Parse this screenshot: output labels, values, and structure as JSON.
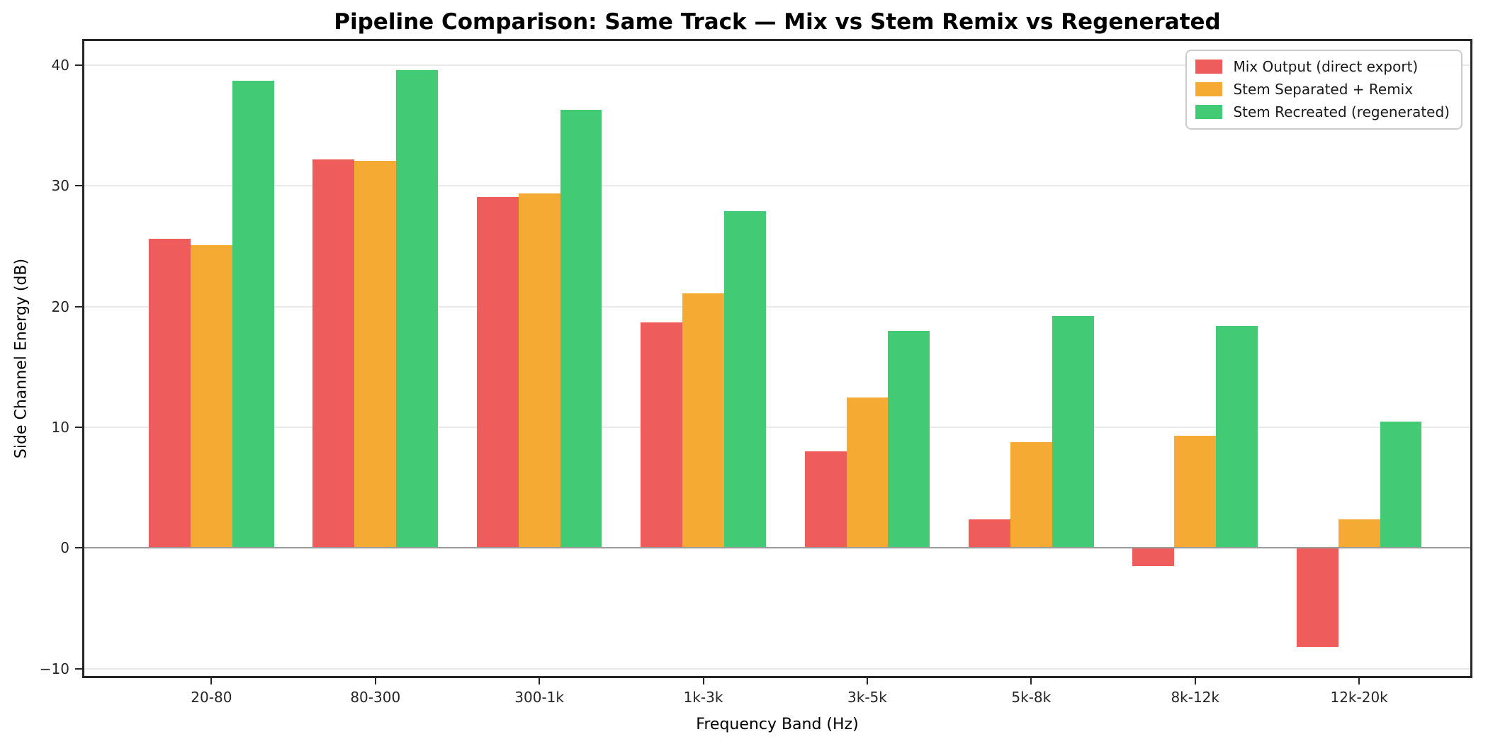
{
  "chart_data": {
    "type": "bar",
    "title": "Pipeline Comparison: Same Track — Mix vs Stem Remix vs Regenerated",
    "xlabel": "Frequency Band (Hz)",
    "ylabel": "Side Channel Energy (dB)",
    "categories": [
      "20-80",
      "80-300",
      "300-1k",
      "1k-3k",
      "3k-5k",
      "5k-8k",
      "8k-12k",
      "12k-20k"
    ],
    "series": [
      {
        "name": "Mix Output (direct export)",
        "color": "#ef5c5c",
        "values": [
          25.6,
          32.2,
          29.1,
          18.7,
          8.0,
          2.4,
          -1.5,
          -8.2
        ]
      },
      {
        "name": "Stem Separated + Remix",
        "color": "#f5ab33",
        "values": [
          25.1,
          32.1,
          29.4,
          21.1,
          12.5,
          8.8,
          9.3,
          2.4
        ]
      },
      {
        "name": "Stem Recreated (regenerated)",
        "color": "#42ca75",
        "values": [
          38.7,
          39.6,
          36.3,
          27.9,
          18.0,
          19.2,
          18.4,
          10.5
        ]
      }
    ],
    "ylim": [
      -10.6,
      42.0
    ],
    "yticks": [
      -10,
      0,
      10,
      20,
      30,
      40
    ],
    "grid": "horizontal",
    "gridline_color": "#e9e9e9",
    "zero_line": true,
    "zero_line_color": "#9a9a9a",
    "legend_position": "upper right"
  }
}
